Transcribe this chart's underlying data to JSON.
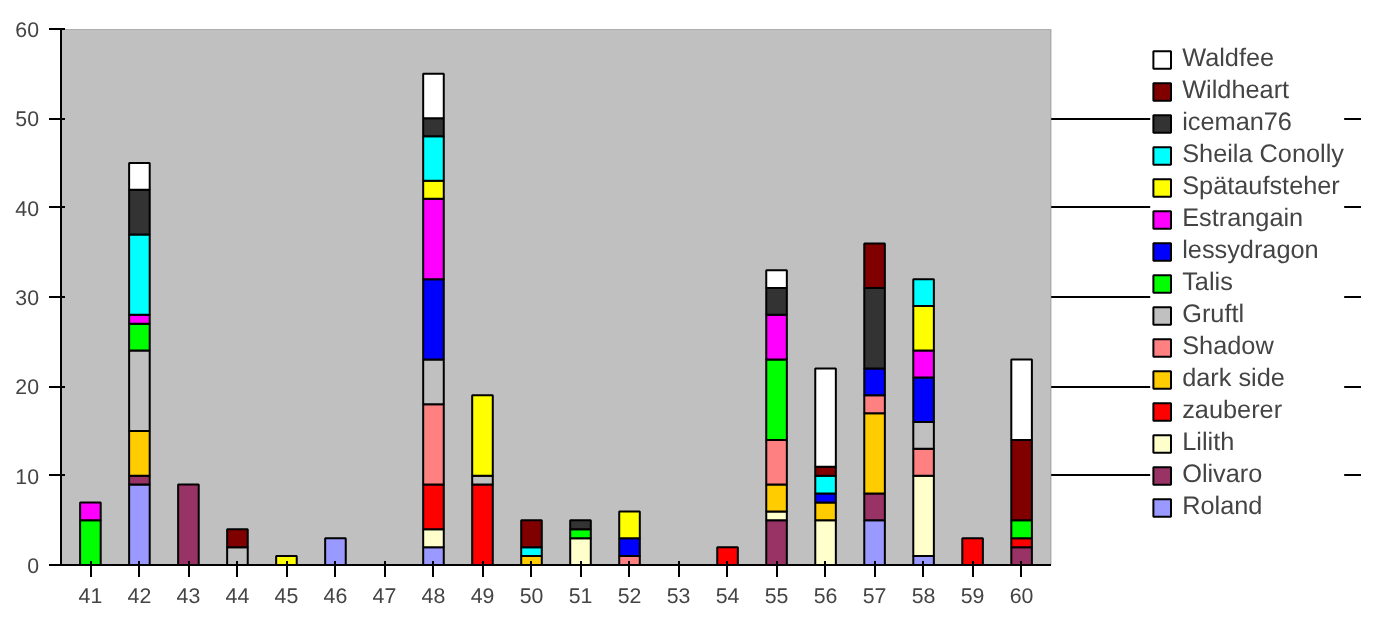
{
  "chart_data": {
    "type": "bar",
    "stacked": true,
    "categories": [
      "41",
      "42",
      "43",
      "44",
      "45",
      "46",
      "47",
      "48",
      "49",
      "50",
      "51",
      "52",
      "53",
      "54",
      "55",
      "56",
      "57",
      "58",
      "59",
      "60"
    ],
    "ylim": [
      0,
      60
    ],
    "yticks": [
      0,
      10,
      20,
      30,
      40,
      50,
      60
    ],
    "grid": "y",
    "legend": "right",
    "series": [
      {
        "name": "Roland",
        "color": "#9999ff",
        "values": [
          null,
          9,
          null,
          null,
          null,
          3,
          null,
          2,
          null,
          null,
          null,
          null,
          null,
          null,
          null,
          null,
          5,
          1,
          null,
          null
        ]
      },
      {
        "name": "Olivaro",
        "color": "#993366",
        "values": [
          null,
          1,
          9,
          null,
          null,
          null,
          null,
          null,
          null,
          null,
          null,
          null,
          null,
          null,
          5,
          null,
          3,
          null,
          null,
          2
        ]
      },
      {
        "name": "Lilith",
        "color": "#ffffcc",
        "values": [
          null,
          null,
          null,
          null,
          null,
          null,
          null,
          2,
          null,
          null,
          3,
          null,
          null,
          null,
          1,
          5,
          null,
          9,
          null,
          null
        ]
      },
      {
        "name": "zauberer",
        "color": "#ff0000",
        "values": [
          null,
          null,
          null,
          null,
          null,
          null,
          null,
          5,
          9,
          null,
          null,
          null,
          null,
          2,
          null,
          null,
          null,
          null,
          3,
          1
        ]
      },
      {
        "name": "dark side",
        "color": "#ffcc00",
        "values": [
          null,
          5,
          null,
          null,
          null,
          null,
          null,
          null,
          null,
          1,
          null,
          null,
          null,
          null,
          3,
          2,
          9,
          null,
          null,
          null
        ]
      },
      {
        "name": "Shadow",
        "color": "#ff8080",
        "values": [
          null,
          null,
          null,
          null,
          null,
          null,
          null,
          9,
          null,
          null,
          null,
          1,
          null,
          null,
          5,
          null,
          2,
          3,
          null,
          null
        ]
      },
      {
        "name": "Gruftl",
        "color": "#c0c0c0",
        "values": [
          null,
          9,
          null,
          2,
          null,
          null,
          null,
          5,
          1,
          null,
          null,
          null,
          null,
          null,
          null,
          null,
          null,
          3,
          null,
          null
        ]
      },
      {
        "name": "Talis",
        "color": "#00ff00",
        "values": [
          5,
          3,
          null,
          null,
          null,
          null,
          null,
          null,
          null,
          null,
          1,
          null,
          null,
          null,
          9,
          null,
          null,
          null,
          null,
          2
        ]
      },
      {
        "name": "lessydragon",
        "color": "#0000ff",
        "values": [
          null,
          null,
          null,
          null,
          null,
          null,
          null,
          9,
          null,
          null,
          null,
          2,
          null,
          null,
          null,
          1,
          3,
          5,
          null,
          null
        ]
      },
      {
        "name": "Estrangain",
        "color": "#ff00ff",
        "values": [
          2,
          1,
          null,
          null,
          null,
          null,
          null,
          9,
          null,
          null,
          null,
          null,
          null,
          null,
          5,
          null,
          null,
          3,
          null,
          null
        ]
      },
      {
        "name": "Spätaufsteher",
        "color": "#ffff00",
        "values": [
          null,
          null,
          null,
          null,
          1,
          null,
          null,
          2,
          9,
          null,
          null,
          3,
          null,
          null,
          null,
          null,
          null,
          5,
          null,
          null
        ]
      },
      {
        "name": "Sheila Conolly",
        "color": "#00ffff",
        "values": [
          null,
          9,
          null,
          null,
          null,
          null,
          null,
          5,
          null,
          1,
          null,
          null,
          null,
          null,
          null,
          2,
          null,
          3,
          null,
          null
        ]
      },
      {
        "name": "iceman76",
        "color": "#333333",
        "values": [
          null,
          5,
          null,
          null,
          null,
          null,
          null,
          2,
          null,
          null,
          1,
          null,
          null,
          null,
          3,
          null,
          9,
          null,
          null,
          null
        ]
      },
      {
        "name": "Wildheart",
        "color": "#800000",
        "values": [
          null,
          null,
          null,
          2,
          null,
          null,
          null,
          null,
          null,
          3,
          null,
          null,
          null,
          null,
          null,
          1,
          5,
          null,
          null,
          9
        ]
      },
      {
        "name": "Waldfee",
        "color": "#ffffff",
        "values": [
          null,
          3,
          null,
          null,
          null,
          null,
          null,
          5,
          null,
          null,
          null,
          null,
          null,
          null,
          2,
          11,
          null,
          null,
          null,
          9
        ]
      }
    ]
  }
}
